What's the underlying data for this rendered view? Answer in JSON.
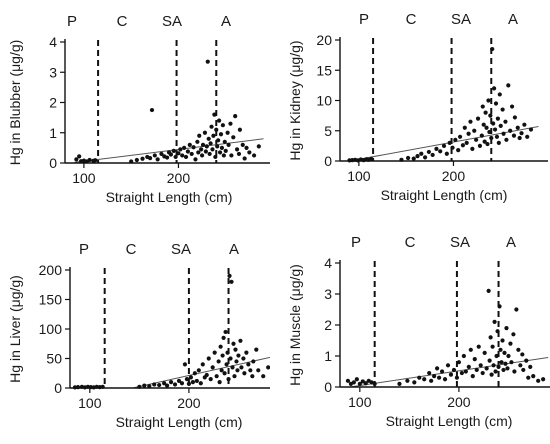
{
  "figure": {
    "stage_labels": [
      "P",
      "C",
      "SA",
      "A"
    ]
  },
  "chart_data": [
    {
      "id": "blubber",
      "type": "scatter",
      "xlabel": "Straight Length (cm)",
      "ylabel": "Hg in Blubber (μg/g)",
      "xlim": [
        80,
        300
      ],
      "ylim": [
        0,
        4
      ],
      "xticks": [
        100,
        200
      ],
      "yticks": [
        0,
        1,
        2,
        3,
        4
      ],
      "stage_boundaries": [
        115,
        198,
        240
      ],
      "fit_line": {
        "x": [
          90,
          290
        ],
        "y": [
          0.02,
          0.8
        ]
      },
      "points": [
        [
          92,
          0.12
        ],
        [
          95,
          0.22
        ],
        [
          97,
          0.06
        ],
        [
          100,
          0.08
        ],
        [
          103,
          0.05
        ],
        [
          106,
          0.1
        ],
        [
          110,
          0.07
        ],
        [
          112,
          0.09
        ],
        [
          150,
          0.05
        ],
        [
          156,
          0.1
        ],
        [
          162,
          0.14
        ],
        [
          167,
          0.2
        ],
        [
          170,
          0.16
        ],
        [
          172,
          1.75
        ],
        [
          175,
          0.25
        ],
        [
          178,
          0.12
        ],
        [
          182,
          0.3
        ],
        [
          185,
          0.22
        ],
        [
          188,
          0.18
        ],
        [
          190,
          0.35
        ],
        [
          192,
          0.28
        ],
        [
          195,
          0.4
        ],
        [
          197,
          0.2
        ],
        [
          200,
          0.32
        ],
        [
          202,
          0.45
        ],
        [
          204,
          0.25
        ],
        [
          206,
          0.5
        ],
        [
          208,
          0.2
        ],
        [
          210,
          0.38
        ],
        [
          212,
          0.6
        ],
        [
          214,
          0.3
        ],
        [
          216,
          0.52
        ],
        [
          218,
          0.12
        ],
        [
          220,
          0.7
        ],
        [
          221,
          0.35
        ],
        [
          222,
          0.9
        ],
        [
          224,
          0.45
        ],
        [
          225,
          0.25
        ],
        [
          226,
          0.6
        ],
        [
          228,
          1.0
        ],
        [
          229,
          0.38
        ],
        [
          230,
          0.55
        ],
        [
          231,
          3.35
        ],
        [
          232,
          0.8
        ],
        [
          233,
          0.3
        ],
        [
          234,
          0.65
        ],
        [
          235,
          1.2
        ],
        [
          236,
          0.45
        ],
        [
          237,
          0.9
        ],
        [
          238,
          1.6
        ],
        [
          239,
          0.2
        ],
        [
          240,
          1.1
        ],
        [
          241,
          0.55
        ],
        [
          242,
          0.75
        ],
        [
          243,
          1.4
        ],
        [
          244,
          0.35
        ],
        [
          245,
          0.95
        ],
        [
          246,
          0.5
        ],
        [
          247,
          1.25
        ],
        [
          248,
          0.25
        ],
        [
          249,
          0.7
        ],
        [
          250,
          0.4
        ],
        [
          252,
          1.0
        ],
        [
          253,
          0.6
        ],
        [
          255,
          1.3
        ],
        [
          256,
          0.25
        ],
        [
          258,
          0.85
        ],
        [
          260,
          1.55
        ],
        [
          262,
          0.45
        ],
        [
          264,
          0.3
        ],
        [
          265,
          1.1
        ],
        [
          268,
          0.6
        ],
        [
          270,
          0.15
        ],
        [
          272,
          0.5
        ],
        [
          275,
          0.35
        ],
        [
          280,
          0.25
        ],
        [
          285,
          0.55
        ]
      ]
    },
    {
      "id": "kidney",
      "type": "scatter",
      "xlabel": "Straight Length (cm)",
      "ylabel": "Hg in Kidney (μg/g)",
      "xlim": [
        80,
        300
      ],
      "ylim": [
        0,
        20
      ],
      "xticks": [
        100,
        200
      ],
      "yticks": [
        0,
        5,
        10,
        15,
        20
      ],
      "stage_boundaries": [
        115,
        198,
        240
      ],
      "fit_line": {
        "x": [
          90,
          290
        ],
        "y": [
          0.0,
          5.7
        ]
      },
      "points": [
        [
          90,
          0.1
        ],
        [
          93,
          0.15
        ],
        [
          96,
          0.2
        ],
        [
          99,
          0.1
        ],
        [
          102,
          0.25
        ],
        [
          105,
          0.15
        ],
        [
          108,
          0.3
        ],
        [
          110,
          0.2
        ],
        [
          113,
          0.35
        ],
        [
          145,
          0.2
        ],
        [
          152,
          0.5
        ],
        [
          158,
          0.4
        ],
        [
          162,
          0.8
        ],
        [
          166,
          1.2
        ],
        [
          170,
          0.6
        ],
        [
          174,
          1.5
        ],
        [
          178,
          1.0
        ],
        [
          182,
          2.0
        ],
        [
          186,
          1.6
        ],
        [
          190,
          2.5
        ],
        [
          193,
          1.2
        ],
        [
          196,
          3.0
        ],
        [
          199,
          2.2
        ],
        [
          202,
          3.5
        ],
        [
          205,
          1.8
        ],
        [
          207,
          4.0
        ],
        [
          210,
          2.6
        ],
        [
          212,
          5.5
        ],
        [
          214,
          3.0
        ],
        [
          216,
          4.5
        ],
        [
          218,
          6.5
        ],
        [
          220,
          2.0
        ],
        [
          222,
          5.0
        ],
        [
          224,
          3.5
        ],
        [
          226,
          7.0
        ],
        [
          228,
          2.5
        ],
        [
          230,
          4.2
        ],
        [
          231,
          9.0
        ],
        [
          232,
          6.0
        ],
        [
          233,
          3.2
        ],
        [
          234,
          8.0
        ],
        [
          235,
          5.5
        ],
        [
          236,
          2.8
        ],
        [
          237,
          10.0
        ],
        [
          238,
          4.8
        ],
        [
          239,
          7.5
        ],
        [
          240,
          3.8
        ],
        [
          241,
          18.5
        ],
        [
          242,
          6.2
        ],
        [
          243,
          12.0
        ],
        [
          244,
          5.2
        ],
        [
          245,
          9.5
        ],
        [
          246,
          4.0
        ],
        [
          247,
          7.0
        ],
        [
          248,
          3.0
        ],
        [
          249,
          11.0
        ],
        [
          250,
          5.8
        ],
        [
          252,
          8.5
        ],
        [
          253,
          4.5
        ],
        [
          255,
          6.5
        ],
        [
          256,
          3.5
        ],
        [
          258,
          12.5
        ],
        [
          260,
          5.0
        ],
        [
          262,
          9.0
        ],
        [
          264,
          4.2
        ],
        [
          265,
          7.2
        ],
        [
          268,
          5.5
        ],
        [
          270,
          3.8
        ],
        [
          272,
          4.6
        ],
        [
          275,
          6.0
        ],
        [
          278,
          4.0
        ],
        [
          282,
          5.2
        ]
      ]
    },
    {
      "id": "liver",
      "type": "scatter",
      "xlabel": "Straight Length (cm)",
      "ylabel": "Hg in Liver (μg/g)",
      "xlim": [
        80,
        300
      ],
      "ylim": [
        0,
        200
      ],
      "xticks": [
        100,
        200
      ],
      "yticks": [
        0,
        50,
        100,
        150,
        200
      ],
      "stage_boundaries": [
        115,
        200,
        240
      ],
      "fit_line": {
        "x": [
          90,
          290
        ],
        "y": [
          -20,
          55
        ]
      },
      "points": [
        [
          85,
          1
        ],
        [
          88,
          1.5
        ],
        [
          92,
          2
        ],
        [
          95,
          1
        ],
        [
          98,
          2
        ],
        [
          101,
          1.5
        ],
        [
          104,
          1
        ],
        [
          107,
          2
        ],
        [
          110,
          1.5
        ],
        [
          113,
          2
        ],
        [
          150,
          2
        ],
        [
          155,
          4
        ],
        [
          160,
          3
        ],
        [
          165,
          6
        ],
        [
          170,
          5
        ],
        [
          175,
          8
        ],
        [
          178,
          4
        ],
        [
          182,
          10
        ],
        [
          186,
          6
        ],
        [
          190,
          12
        ],
        [
          193,
          8
        ],
        [
          196,
          40
        ],
        [
          198,
          15
        ],
        [
          200,
          7
        ],
        [
          202,
          18
        ],
        [
          204,
          10
        ],
        [
          206,
          25
        ],
        [
          208,
          12
        ],
        [
          210,
          30
        ],
        [
          212,
          8
        ],
        [
          214,
          40
        ],
        [
          216,
          18
        ],
        [
          218,
          22
        ],
        [
          220,
          50
        ],
        [
          222,
          15
        ],
        [
          224,
          35
        ],
        [
          226,
          60
        ],
        [
          228,
          20
        ],
        [
          230,
          45
        ],
        [
          231,
          10
        ],
        [
          232,
          70
        ],
        [
          233,
          30
        ],
        [
          234,
          55
        ],
        [
          235,
          85
        ],
        [
          236,
          25
        ],
        [
          237,
          95
        ],
        [
          238,
          40
        ],
        [
          239,
          60
        ],
        [
          240,
          15
        ],
        [
          241,
          190
        ],
        [
          242,
          50
        ],
        [
          243,
          180
        ],
        [
          244,
          35
        ],
        [
          245,
          75
        ],
        [
          246,
          20
        ],
        [
          247,
          65
        ],
        [
          248,
          45
        ],
        [
          249,
          30
        ],
        [
          250,
          55
        ],
        [
          252,
          80
        ],
        [
          253,
          35
        ],
        [
          255,
          50
        ],
        [
          256,
          25
        ],
        [
          258,
          60
        ],
        [
          260,
          40
        ],
        [
          262,
          30
        ],
        [
          264,
          20
        ],
        [
          265,
          45
        ],
        [
          268,
          65
        ],
        [
          270,
          30
        ],
        [
          275,
          20
        ],
        [
          280,
          35
        ],
        [
          285,
          70
        ]
      ]
    },
    {
      "id": "muscle",
      "type": "scatter",
      "xlabel": "Straight Length (cm)",
      "ylabel": "Hg in Muscle (μg/g)",
      "xlim": [
        80,
        300
      ],
      "ylim": [
        0,
        4
      ],
      "xticks": [
        100,
        200
      ],
      "yticks": [
        0,
        1,
        2,
        3,
        4
      ],
      "stage_boundaries": [
        115,
        198,
        240
      ],
      "fit_line": {
        "x": [
          90,
          290
        ],
        "y": [
          0.0,
          0.95
        ]
      },
      "points": [
        [
          88,
          0.2
        ],
        [
          91,
          0.1
        ],
        [
          94,
          0.15
        ],
        [
          97,
          0.25
        ],
        [
          100,
          0.1
        ],
        [
          103,
          0.18
        ],
        [
          106,
          0.12
        ],
        [
          109,
          0.2
        ],
        [
          112,
          0.15
        ],
        [
          115,
          0.1
        ],
        [
          140,
          0.1
        ],
        [
          148,
          0.2
        ],
        [
          155,
          0.15
        ],
        [
          160,
          0.3
        ],
        [
          165,
          0.25
        ],
        [
          170,
          0.45
        ],
        [
          172,
          0.2
        ],
        [
          175,
          0.35
        ],
        [
          178,
          0.6
        ],
        [
          180,
          0.3
        ],
        [
          183,
          0.5
        ],
        [
          186,
          0.25
        ],
        [
          189,
          0.7
        ],
        [
          192,
          0.4
        ],
        [
          195,
          0.55
        ],
        [
          198,
          0.3
        ],
        [
          200,
          0.8
        ],
        [
          203,
          0.45
        ],
        [
          205,
          1.0
        ],
        [
          207,
          0.5
        ],
        [
          210,
          0.65
        ],
        [
          212,
          1.2
        ],
        [
          214,
          0.35
        ],
        [
          216,
          0.9
        ],
        [
          218,
          0.55
        ],
        [
          220,
          1.3
        ],
        [
          222,
          0.7
        ],
        [
          224,
          0.45
        ],
        [
          226,
          1.1
        ],
        [
          228,
          0.6
        ],
        [
          230,
          3.1
        ],
        [
          231,
          0.85
        ],
        [
          232,
          1.6
        ],
        [
          233,
          0.4
        ],
        [
          234,
          1.3
        ],
        [
          235,
          0.7
        ],
        [
          236,
          2.1
        ],
        [
          237,
          0.5
        ],
        [
          238,
          1.0
        ],
        [
          239,
          1.8
        ],
        [
          240,
          0.65
        ],
        [
          241,
          2.6
        ],
        [
          242,
          1.2
        ],
        [
          243,
          0.8
        ],
        [
          244,
          1.5
        ],
        [
          245,
          0.55
        ],
        [
          246,
          1.1
        ],
        [
          247,
          0.75
        ],
        [
          248,
          1.9
        ],
        [
          249,
          0.6
        ],
        [
          250,
          1.0
        ],
        [
          252,
          1.4
        ],
        [
          253,
          0.8
        ],
        [
          255,
          1.7
        ],
        [
          256,
          0.5
        ],
        [
          258,
          2.5
        ],
        [
          260,
          1.2
        ],
        [
          262,
          0.7
        ],
        [
          264,
          1.05
        ],
        [
          265,
          0.55
        ],
        [
          268,
          0.85
        ],
        [
          270,
          0.3
        ],
        [
          272,
          0.65
        ],
        [
          275,
          0.35
        ],
        [
          280,
          0.2
        ],
        [
          285,
          0.25
        ]
      ]
    }
  ]
}
